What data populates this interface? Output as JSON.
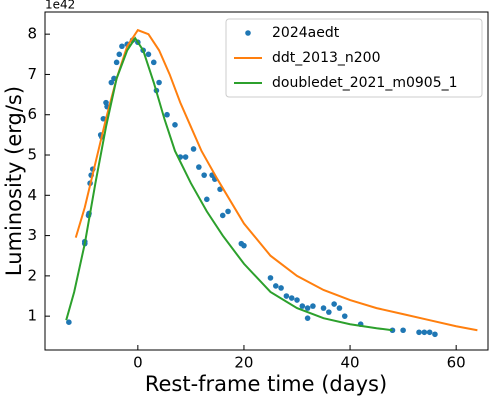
{
  "chart_data": {
    "type": "line",
    "xlabel": "Rest-frame time (days)",
    "ylabel": "Luminosity (erg/s)",
    "offset_label": "1e42",
    "xlim": [
      -17.5,
      66
    ],
    "ylim": [
      0.16,
      8.55
    ],
    "xticks": [
      0,
      20,
      40,
      60
    ],
    "yticks": [
      1,
      2,
      3,
      4,
      5,
      6,
      7,
      8
    ],
    "legend": "upper right",
    "series": [
      {
        "name": "2024aedt",
        "color": "#1f77b4",
        "style": "markers",
        "x": [
          -13,
          -10,
          -10,
          -9.3,
          -9.2,
          -9,
          -8.8,
          -8.5,
          -7,
          -6.8,
          -6.5,
          -6,
          -5.8,
          -5,
          -4.5,
          -4,
          -3.5,
          -3,
          -2,
          -1,
          0,
          1,
          2,
          3,
          3.5,
          4,
          5.5,
          7,
          8,
          9,
          10.5,
          11.5,
          12.5,
          13,
          14,
          14.5,
          15.5,
          16,
          17,
          19.5,
          20,
          25,
          26,
          27,
          28,
          29,
          30,
          31,
          32,
          32,
          33,
          35,
          36,
          37,
          38,
          39,
          42,
          48,
          50,
          53,
          54,
          55,
          56
        ],
        "values": [
          0.85,
          2.8,
          2.85,
          3.5,
          3.55,
          4.3,
          4.5,
          4.65,
          5.5,
          5.45,
          5.9,
          6.3,
          6.2,
          6.8,
          6.9,
          7.3,
          7.5,
          7.7,
          7.75,
          7.85,
          7.8,
          7.6,
          7.5,
          7.3,
          6.6,
          6.8,
          6.0,
          5.75,
          4.95,
          4.95,
          5.15,
          4.7,
          4.5,
          3.9,
          4.5,
          4.4,
          4.15,
          3.5,
          3.6,
          2.8,
          2.75,
          1.95,
          1.75,
          1.7,
          1.5,
          1.45,
          1.4,
          1.25,
          1.2,
          0.95,
          1.25,
          1.2,
          1.1,
          1.3,
          1.2,
          1.0,
          0.8,
          0.65,
          0.65,
          0.6,
          0.6,
          0.6,
          0.55
        ]
      },
      {
        "name": "ddt_2013_n200",
        "color": "#ff7f0e",
        "style": "line",
        "x": [
          -11.7,
          -10,
          -8,
          -6,
          -4,
          -2,
          0,
          2,
          4,
          6,
          8,
          10,
          12,
          15,
          20,
          25,
          30,
          35,
          40,
          45,
          50,
          55,
          60,
          64
        ],
        "values": [
          2.95,
          3.7,
          4.8,
          5.9,
          6.9,
          7.7,
          8.1,
          8.0,
          7.6,
          7.0,
          6.3,
          5.7,
          5.1,
          4.4,
          3.3,
          2.5,
          2.0,
          1.65,
          1.4,
          1.2,
          1.05,
          0.9,
          0.75,
          0.65
        ]
      },
      {
        "name": "doubledet_2021_m0905_1",
        "color": "#2ca02c",
        "style": "line",
        "x": [
          -13.5,
          -12,
          -10,
          -8,
          -6,
          -4,
          -2,
          -0.5,
          1,
          3,
          5,
          7,
          10,
          13,
          16,
          20,
          25,
          30,
          35,
          40,
          45,
          48
        ],
        "values": [
          0.9,
          1.6,
          2.8,
          4.3,
          5.7,
          6.9,
          7.6,
          7.9,
          7.6,
          6.8,
          5.9,
          5.1,
          4.3,
          3.6,
          3.0,
          2.3,
          1.6,
          1.2,
          0.95,
          0.8,
          0.7,
          0.65
        ]
      }
    ]
  }
}
